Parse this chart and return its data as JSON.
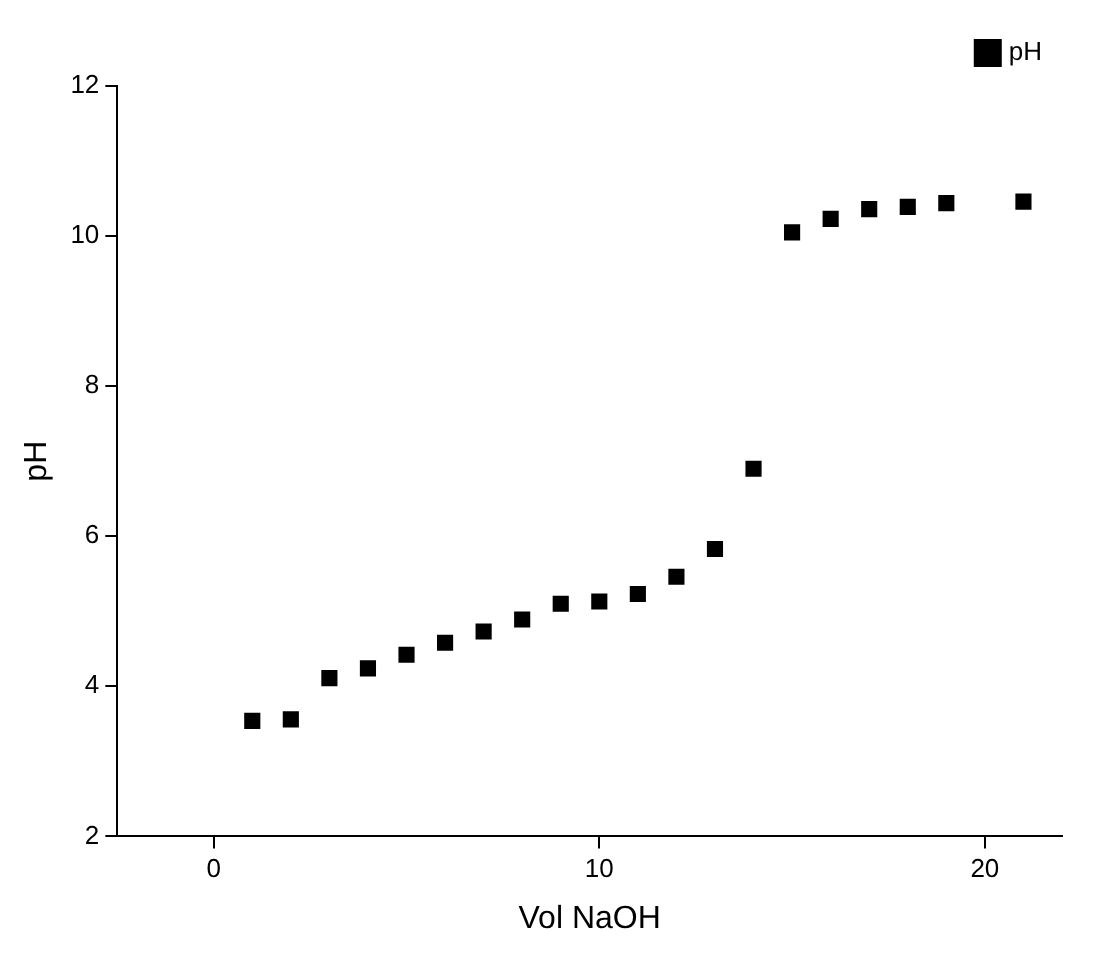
{
  "chart_data": {
    "type": "scatter",
    "xlabel": "Vol NaOH",
    "ylabel": "pH",
    "x": [
      1,
      2,
      3,
      4,
      5,
      6,
      7,
      8,
      9,
      10,
      11,
      12,
      13,
      14,
      15,
      16,
      17,
      18,
      19,
      21
    ],
    "series": [
      {
        "name": "pH",
        "color": "#000000",
        "values": [
          3.54,
          3.56,
          4.11,
          4.24,
          4.42,
          4.58,
          4.73,
          4.89,
          5.1,
          5.13,
          5.23,
          5.46,
          5.83,
          6.9,
          10.05,
          10.23,
          10.36,
          10.39,
          10.44,
          10.46
        ]
      }
    ],
    "xlim": [
      -2.5,
      22
    ],
    "xticks": [
      0,
      10,
      20
    ],
    "ylim": [
      2,
      12
    ],
    "yticks": [
      2,
      4,
      6,
      8,
      10,
      12
    ],
    "marker": "square",
    "grid": false,
    "legend": "top right"
  }
}
